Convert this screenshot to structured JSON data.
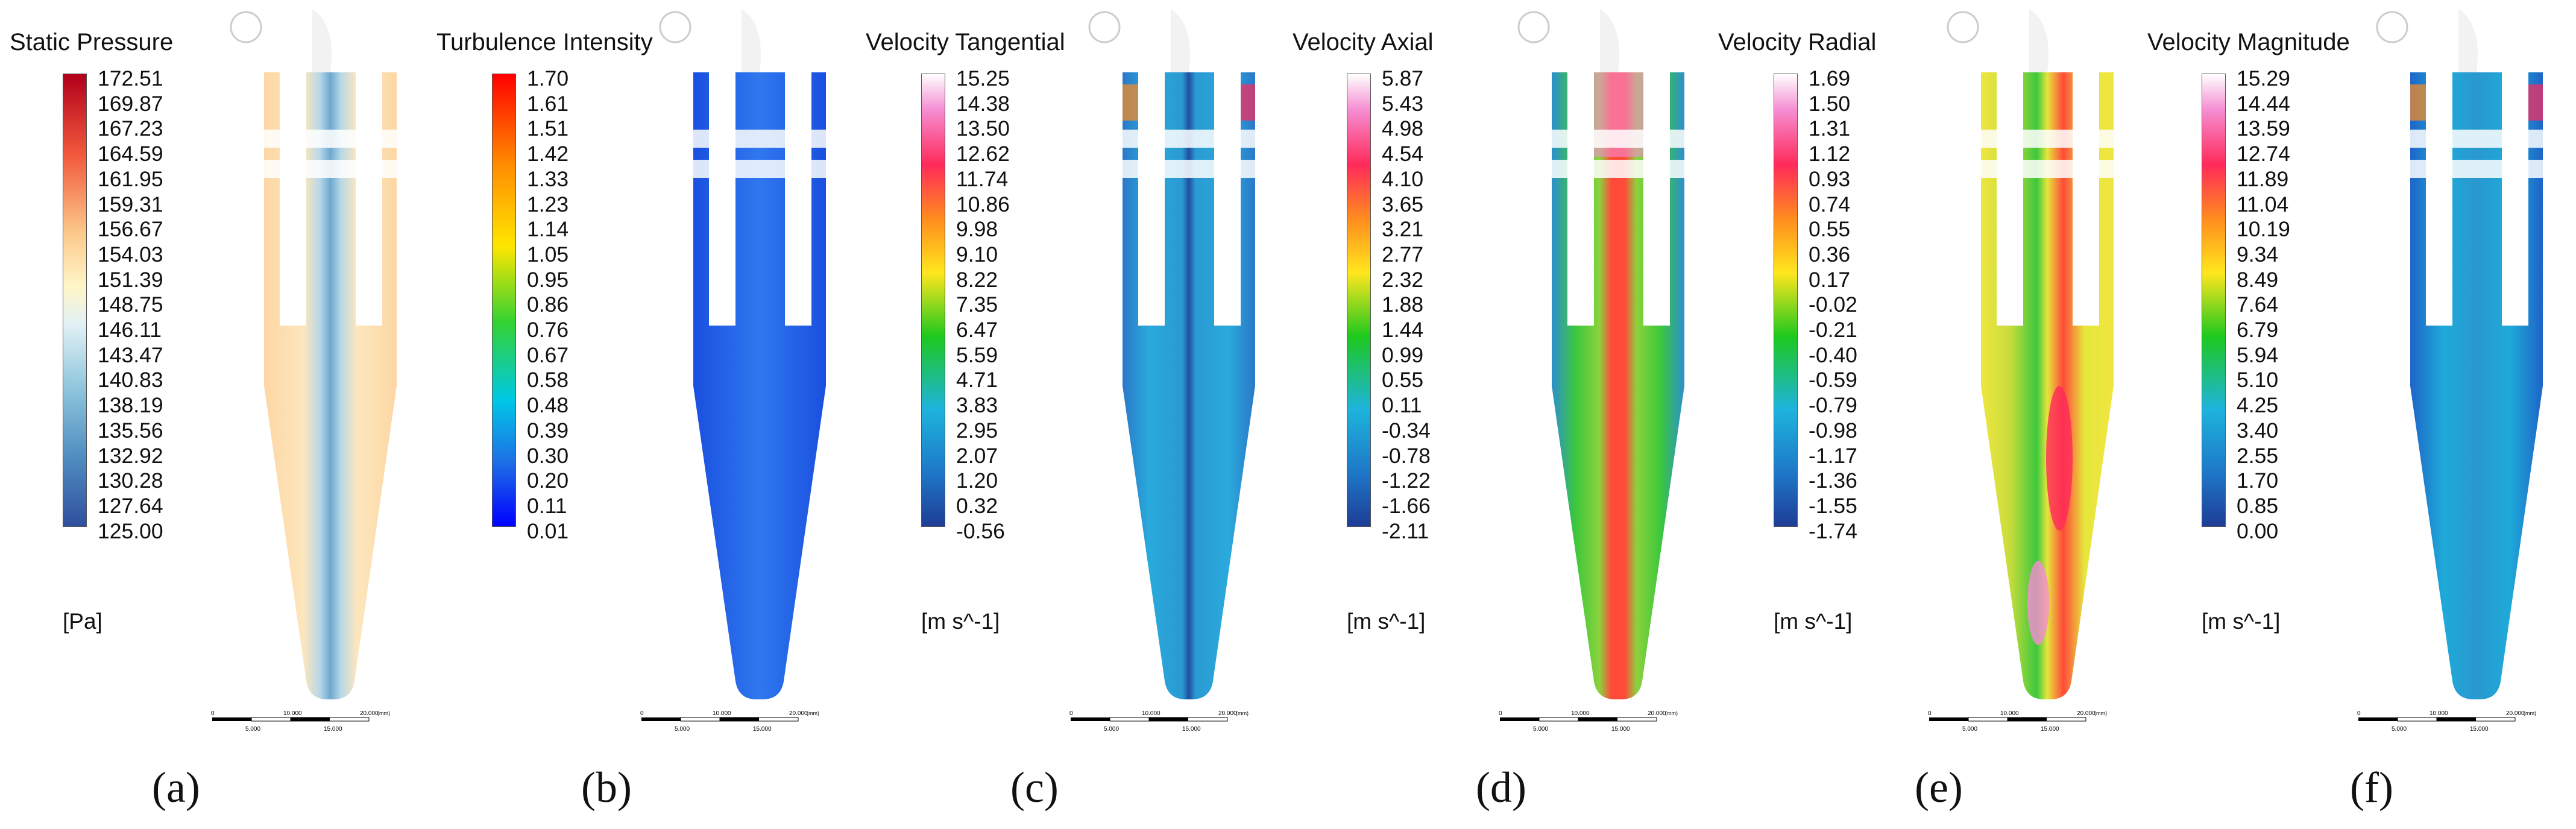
{
  "panels": [
    {
      "id": "a",
      "label": "(a)",
      "title": "Static Pressure",
      "unit": "[Pa]",
      "ticks": [
        "172.51",
        "169.87",
        "167.23",
        "164.59",
        "161.95",
        "159.31",
        "156.67",
        "154.03",
        "151.39",
        "148.75",
        "146.11",
        "143.47",
        "140.83",
        "138.19",
        "135.56",
        "132.92",
        "130.28",
        "127.64",
        "125.00"
      ],
      "scale_labels": [
        "0",
        "10.000",
        "20.000",
        "5.000",
        "15.000"
      ],
      "scale_unit": "(mm)"
    },
    {
      "id": "b",
      "label": "(b)",
      "title": "Turbulence Intensity",
      "unit": "",
      "ticks": [
        "1.70",
        "1.61",
        "1.51",
        "1.42",
        "1.33",
        "1.23",
        "1.14",
        "1.05",
        "0.95",
        "0.86",
        "0.76",
        "0.67",
        "0.58",
        "0.48",
        "0.39",
        "0.30",
        "0.20",
        "0.11",
        "0.01"
      ],
      "scale_labels": [
        "0",
        "10.000",
        "20.000",
        "5.000",
        "15.000"
      ],
      "scale_unit": "(mm)"
    },
    {
      "id": "c",
      "label": "(c)",
      "title": "Velocity Tangential",
      "unit": "[m s^-1]",
      "ticks": [
        "15.25",
        "14.38",
        "13.50",
        "12.62",
        "11.74",
        "10.86",
        "9.98",
        "9.10",
        "8.22",
        "7.35",
        "6.47",
        "5.59",
        "4.71",
        "3.83",
        "2.95",
        "2.07",
        "1.20",
        "0.32",
        "-0.56"
      ],
      "scale_labels": [
        "0",
        "10.000",
        "20.000",
        "5.000",
        "15.000"
      ],
      "scale_unit": "(mm)"
    },
    {
      "id": "d",
      "label": "(d)",
      "title": "Velocity Axial",
      "unit": "[m s^-1]",
      "ticks": [
        "5.87",
        "5.43",
        "4.98",
        "4.54",
        "4.10",
        "3.65",
        "3.21",
        "2.77",
        "2.32",
        "1.88",
        "1.44",
        "0.99",
        "0.55",
        "0.11",
        "-0.34",
        "-0.78",
        "-1.22",
        "-1.66",
        "-2.11"
      ],
      "scale_labels": [
        "0",
        "10.000",
        "20.000",
        "5.000",
        "15.000"
      ],
      "scale_unit": "(mm)"
    },
    {
      "id": "e",
      "label": "(e)",
      "title": "Velocity Radial",
      "unit": "[m s^-1]",
      "ticks": [
        "1.69",
        "1.50",
        "1.31",
        "1.12",
        "0.93",
        "0.74",
        "0.55",
        "0.36",
        "0.17",
        "-0.02",
        "-0.21",
        "-0.40",
        "-0.59",
        "-0.79",
        "-0.98",
        "-1.17",
        "-1.36",
        "-1.55",
        "-1.74"
      ],
      "scale_labels": [
        "0",
        "10.000",
        "20.000",
        "5.000",
        "15.000"
      ],
      "scale_unit": "(mm)"
    },
    {
      "id": "f",
      "label": "(f)",
      "title": "Velocity Magnitude",
      "unit": "[m s^-1]",
      "ticks": [
        "15.29",
        "14.44",
        "13.59",
        "12.74",
        "11.89",
        "11.04",
        "10.19",
        "9.34",
        "8.49",
        "7.64",
        "6.79",
        "5.94",
        "5.10",
        "4.25",
        "3.40",
        "2.55",
        "1.70",
        "0.85",
        "0.00"
      ],
      "scale_labels": [
        "0",
        "10.000",
        "20.000",
        "5.000",
        "15.000"
      ],
      "scale_unit": "(mm)"
    }
  ],
  "colors": {
    "pressure_high": "#b0001b",
    "pressure_mid": "#fff6c8",
    "pressure_low": "#2f4f9e",
    "turb_high": "#ff0000",
    "turb_low": "#0000ff",
    "vel_high": "#ff2a2a",
    "vel_mid": "#1ec81e",
    "vel_low": "#1e3c96",
    "wall": "#ffffff"
  }
}
